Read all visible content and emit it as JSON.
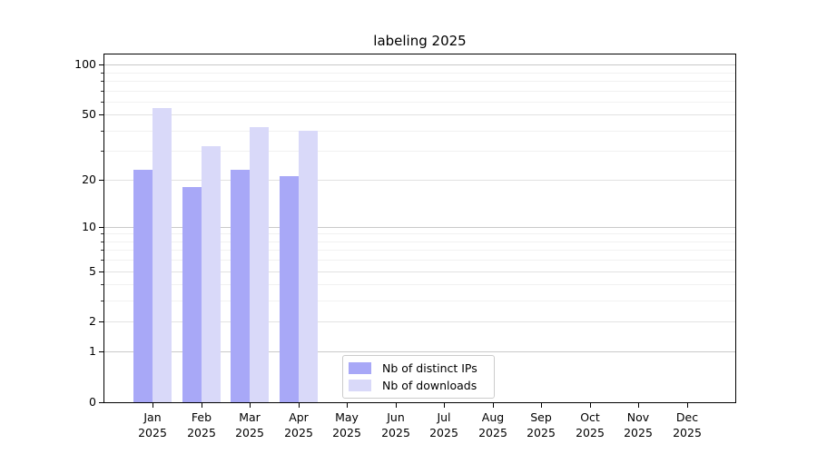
{
  "title": "labeling 2025",
  "legend": {
    "entries": [
      {
        "label": "Nb of distinct IPs",
        "swatch": "dark-periwinkle-swatch"
      },
      {
        "label": "Nb of downloads",
        "swatch": "light-periwinkle-swatch"
      }
    ]
  },
  "colors": {
    "bar_distinct_ips": "#a8a8f7",
    "bar_downloads": "#d9d9f9",
    "grid_decade": "#c9c9c9",
    "grid_major": "#e2e2e2",
    "grid_minor": "#f1f1f1",
    "axis": "#000000",
    "legend_border": "#cccccc"
  },
  "chart_data": {
    "type": "bar",
    "title": "labeling 2025",
    "categories": [
      "Jan",
      "Feb",
      "Mar",
      "Apr",
      "May",
      "Jun",
      "Jul",
      "Aug",
      "Sep",
      "Oct",
      "Nov",
      "Dec"
    ],
    "category_year": "2025",
    "series": [
      {
        "name": "Nb of distinct IPs",
        "color": "#a8a8f7",
        "values": [
          23,
          18,
          23,
          21,
          0,
          0,
          0,
          0,
          0,
          0,
          0,
          0
        ]
      },
      {
        "name": "Nb of downloads",
        "color": "#d9d9f9",
        "values": [
          55,
          32,
          42,
          40,
          0,
          0,
          0,
          0,
          0,
          0,
          0,
          0
        ]
      }
    ],
    "xlabel": "",
    "ylabel": "",
    "yscale": "log1p",
    "yticks": [
      0,
      1,
      2,
      5,
      10,
      20,
      50,
      100
    ],
    "yticks_minor": [
      3,
      4,
      6,
      7,
      8,
      9,
      30,
      40,
      60,
      70,
      80,
      90
    ],
    "ylim": [
      0,
      115
    ],
    "grid": true,
    "legend_position": "lower center"
  }
}
